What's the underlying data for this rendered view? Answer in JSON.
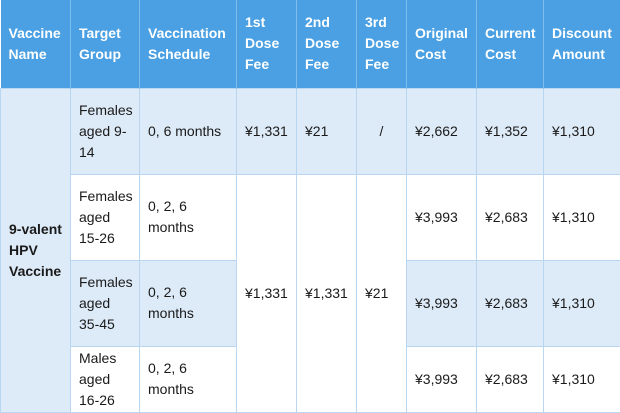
{
  "headers": {
    "vaccine_name": "Vaccine Name",
    "target_group": "Target Group",
    "vaccination_schedule": "Vaccination Schedule",
    "dose1_fee": "1st Dose Fee",
    "dose2_fee": "2nd Dose Fee",
    "dose3_fee": "3rd Dose Fee",
    "original_cost": "Original Cost",
    "current_cost": "Current Cost",
    "discount_amount": "Discount Amount"
  },
  "vaccine_name": "9-valent HPV Vaccine",
  "rows": [
    {
      "target_group": "Females aged 9-14",
      "schedule": "0, 6 months",
      "dose1_fee": "¥1,331",
      "dose2_fee": "¥21",
      "dose3_fee": "/",
      "original_cost": "¥2,662",
      "current_cost": "¥1,352",
      "discount_amount": "¥1,310"
    },
    {
      "target_group": "Females aged 15-26",
      "schedule": "0, 2, 6 months",
      "original_cost": "¥3,993",
      "current_cost": "¥2,683",
      "discount_amount": "¥1,310"
    },
    {
      "target_group": "Females aged 35-45",
      "schedule": "0, 2, 6 months",
      "original_cost": "¥3,993",
      "current_cost": "¥2,683",
      "discount_amount": "¥1,310"
    },
    {
      "target_group": "Males aged 16-26",
      "schedule": "0, 2, 6 months",
      "original_cost": "¥3,993",
      "current_cost": "¥2,683",
      "discount_amount": "¥1,310"
    }
  ],
  "shared_fees": {
    "dose1_fee": "¥1,331",
    "dose2_fee": "¥1,331",
    "dose3_fee": "¥21"
  },
  "colors": {
    "header_bg": "#4aa0e2",
    "shaded_row_bg": "#ddeaf7",
    "border": "#b9d7f0"
  }
}
